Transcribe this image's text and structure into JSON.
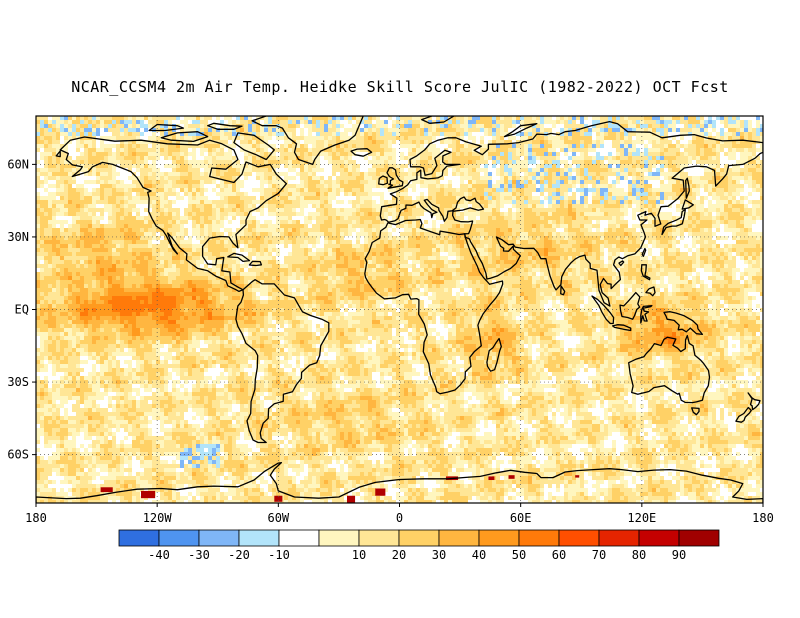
{
  "title": "NCAR_CCSM4 2m Air Temp. Heidke Skill Score JulIC (1982-2022) OCT Fcst",
  "map": {
    "lon_range": [
      -180,
      180
    ],
    "lat_range": [
      -80,
      80
    ],
    "lon_ticks": [
      {
        "value": -180,
        "label": "180"
      },
      {
        "value": -120,
        "label": "120W"
      },
      {
        "value": -60,
        "label": "60W"
      },
      {
        "value": 0,
        "label": "0"
      },
      {
        "value": 60,
        "label": "60E"
      },
      {
        "value": 120,
        "label": "120E"
      },
      {
        "value": 180,
        "label": "180"
      }
    ],
    "lat_ticks": [
      {
        "value": 60,
        "label": "60N"
      },
      {
        "value": 30,
        "label": "30N"
      },
      {
        "value": 0,
        "label": "EQ"
      },
      {
        "value": -30,
        "label": "30S"
      },
      {
        "value": -60,
        "label": "60S"
      }
    ],
    "grid": "dotted"
  },
  "colorbar": {
    "colors": [
      "#2f6fe0",
      "#4f94f0",
      "#7fb6f7",
      "#b2e4fa",
      "#ffffff",
      "#fff6bf",
      "#ffe696",
      "#ffd166",
      "#ffb640",
      "#ff9a1e",
      "#ff7a0a",
      "#ff4f00",
      "#e52400",
      "#c40000",
      "#a00000"
    ],
    "labels": [
      "-40",
      "-30",
      "-20",
      "-10",
      "10",
      "20",
      "30",
      "40",
      "50",
      "60",
      "70",
      "80",
      "90"
    ]
  }
}
